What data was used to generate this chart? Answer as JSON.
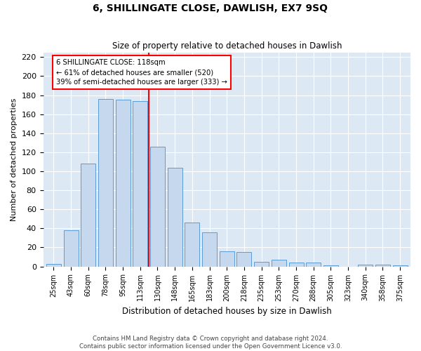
{
  "title": "6, SHILLINGATE CLOSE, DAWLISH, EX7 9SQ",
  "subtitle": "Size of property relative to detached houses in Dawlish",
  "xlabel": "Distribution of detached houses by size in Dawlish",
  "ylabel": "Number of detached properties",
  "categories": [
    "25sqm",
    "43sqm",
    "60sqm",
    "78sqm",
    "95sqm",
    "113sqm",
    "130sqm",
    "148sqm",
    "165sqm",
    "183sqm",
    "200sqm",
    "218sqm",
    "235sqm",
    "253sqm",
    "270sqm",
    "288sqm",
    "305sqm",
    "323sqm",
    "340sqm",
    "358sqm",
    "375sqm"
  ],
  "values": [
    3,
    38,
    108,
    176,
    175,
    174,
    126,
    104,
    46,
    36,
    16,
    15,
    5,
    7,
    4,
    4,
    1,
    0,
    2,
    2,
    1
  ],
  "bar_color": "#c5d8ed",
  "bar_edge_color": "#5b9bd5",
  "background_color": "#dce9f5",
  "grid_color": "#ffffff",
  "vline_x_index": 6,
  "vline_color": "red",
  "annotation_title": "6 SHILLINGATE CLOSE: 118sqm",
  "annotation_line1": "← 61% of detached houses are smaller (520)",
  "annotation_line2": "39% of semi-detached houses are larger (333) →",
  "annotation_box_color": "#ffffff",
  "annotation_box_edge": "red",
  "ylim": [
    0,
    225
  ],
  "yticks": [
    0,
    20,
    40,
    60,
    80,
    100,
    120,
    140,
    160,
    180,
    200,
    220
  ],
  "footer1": "Contains HM Land Registry data © Crown copyright and database right 2024.",
  "footer2": "Contains public sector information licensed under the Open Government Licence v3.0."
}
